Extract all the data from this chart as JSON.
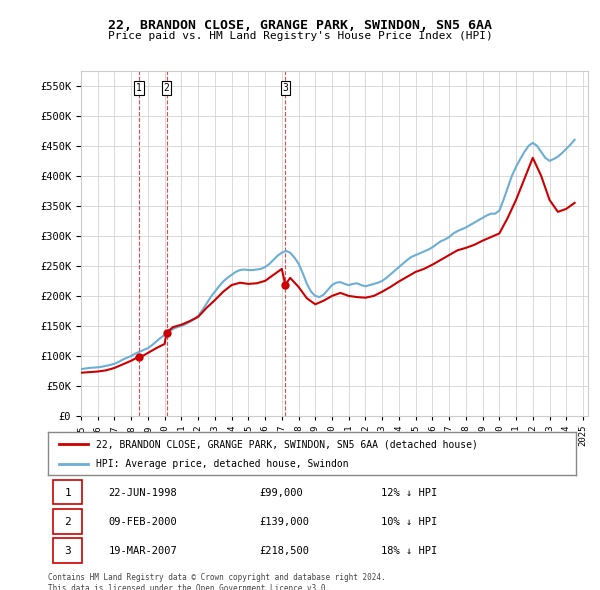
{
  "title": "22, BRANDON CLOSE, GRANGE PARK, SWINDON, SN5 6AA",
  "subtitle": "Price paid vs. HM Land Registry's House Price Index (HPI)",
  "hpi_color": "#6baed6",
  "price_color": "#cc0000",
  "dashed_vline_color": "#cc0000",
  "background_color": "#ffffff",
  "grid_color": "#cccccc",
  "ylim": [
    0,
    575000
  ],
  "yticks": [
    0,
    50000,
    100000,
    150000,
    200000,
    250000,
    300000,
    350000,
    400000,
    450000,
    500000,
    550000
  ],
  "purchases": [
    {
      "label": "1",
      "date": "22-JUN-1998",
      "price": 99000,
      "year": 1998.47,
      "pct": "12%",
      "dir": "↓"
    },
    {
      "label": "2",
      "date": "09-FEB-2000",
      "price": 139000,
      "year": 2000.11,
      "pct": "10%",
      "dir": "↓"
    },
    {
      "label": "3",
      "date": "19-MAR-2007",
      "price": 218500,
      "year": 2007.21,
      "pct": "18%",
      "dir": "↓"
    }
  ],
  "legend_label_price": "22, BRANDON CLOSE, GRANGE PARK, SWINDON, SN5 6AA (detached house)",
  "legend_label_hpi": "HPI: Average price, detached house, Swindon",
  "footer_line1": "Contains HM Land Registry data © Crown copyright and database right 2024.",
  "footer_line2": "This data is licensed under the Open Government Licence v3.0.",
  "hpi_data": {
    "years": [
      1995.0,
      1995.25,
      1995.5,
      1995.75,
      1996.0,
      1996.25,
      1996.5,
      1996.75,
      1997.0,
      1997.25,
      1997.5,
      1997.75,
      1998.0,
      1998.25,
      1998.5,
      1998.75,
      1999.0,
      1999.25,
      1999.5,
      1999.75,
      2000.0,
      2000.25,
      2000.5,
      2000.75,
      2001.0,
      2001.25,
      2001.5,
      2001.75,
      2002.0,
      2002.25,
      2002.5,
      2002.75,
      2003.0,
      2003.25,
      2003.5,
      2003.75,
      2004.0,
      2004.25,
      2004.5,
      2004.75,
      2005.0,
      2005.25,
      2005.5,
      2005.75,
      2006.0,
      2006.25,
      2006.5,
      2006.75,
      2007.0,
      2007.25,
      2007.5,
      2007.75,
      2008.0,
      2008.25,
      2008.5,
      2008.75,
      2009.0,
      2009.25,
      2009.5,
      2009.75,
      2010.0,
      2010.25,
      2010.5,
      2010.75,
      2011.0,
      2011.25,
      2011.5,
      2011.75,
      2012.0,
      2012.25,
      2012.5,
      2012.75,
      2013.0,
      2013.25,
      2013.5,
      2013.75,
      2014.0,
      2014.25,
      2014.5,
      2014.75,
      2015.0,
      2015.25,
      2015.5,
      2015.75,
      2016.0,
      2016.25,
      2016.5,
      2016.75,
      2017.0,
      2017.25,
      2017.5,
      2017.75,
      2018.0,
      2018.25,
      2018.5,
      2018.75,
      2019.0,
      2019.25,
      2019.5,
      2019.75,
      2020.0,
      2020.25,
      2020.5,
      2020.75,
      2021.0,
      2021.25,
      2021.5,
      2021.75,
      2022.0,
      2022.25,
      2022.5,
      2022.75,
      2023.0,
      2023.25,
      2023.5,
      2023.75,
      2024.0,
      2024.25,
      2024.5
    ],
    "values": [
      78000,
      79000,
      80000,
      80500,
      81000,
      82000,
      83500,
      85000,
      87000,
      90000,
      94000,
      97000,
      100000,
      104000,
      107000,
      110000,
      113000,
      118000,
      124000,
      130000,
      135000,
      140000,
      145000,
      148000,
      150000,
      153000,
      157000,
      161000,
      167000,
      176000,
      187000,
      198000,
      207000,
      216000,
      224000,
      230000,
      235000,
      240000,
      243000,
      244000,
      243000,
      243000,
      244000,
      245000,
      248000,
      253000,
      260000,
      267000,
      272000,
      275000,
      272000,
      264000,
      254000,
      238000,
      220000,
      207000,
      200000,
      198000,
      202000,
      210000,
      218000,
      222000,
      223000,
      220000,
      218000,
      220000,
      221000,
      218000,
      216000,
      218000,
      220000,
      222000,
      225000,
      230000,
      236000,
      242000,
      248000,
      254000,
      260000,
      265000,
      268000,
      271000,
      274000,
      277000,
      281000,
      286000,
      291000,
      294000,
      298000,
      304000,
      308000,
      311000,
      314000,
      318000,
      322000,
      326000,
      330000,
      334000,
      337000,
      337000,
      342000,
      360000,
      380000,
      400000,
      415000,
      428000,
      440000,
      450000,
      455000,
      450000,
      440000,
      430000,
      425000,
      428000,
      432000,
      438000,
      445000,
      452000,
      460000
    ]
  },
  "price_series": {
    "years": [
      1995.0,
      1995.5,
      1996.0,
      1996.5,
      1997.0,
      1997.5,
      1998.0,
      1998.47,
      1998.75,
      1999.0,
      1999.5,
      2000.0,
      2000.11,
      2000.5,
      2001.0,
      2001.5,
      2002.0,
      2002.5,
      2003.0,
      2003.5,
      2004.0,
      2004.5,
      2005.0,
      2005.5,
      2006.0,
      2006.5,
      2007.0,
      2007.21,
      2007.5,
      2008.0,
      2008.5,
      2009.0,
      2009.5,
      2010.0,
      2010.5,
      2011.0,
      2011.5,
      2012.0,
      2012.5,
      2013.0,
      2013.5,
      2014.0,
      2014.5,
      2015.0,
      2015.5,
      2016.0,
      2016.5,
      2017.0,
      2017.5,
      2018.0,
      2018.5,
      2019.0,
      2019.5,
      2020.0,
      2020.5,
      2021.0,
      2021.5,
      2022.0,
      2022.5,
      2023.0,
      2023.5,
      2024.0,
      2024.5
    ],
    "values": [
      72000,
      73000,
      74000,
      76000,
      80000,
      86000,
      92000,
      99000,
      101000,
      105000,
      113000,
      120000,
      139000,
      148000,
      152000,
      158000,
      165000,
      180000,
      193000,
      207000,
      218000,
      222000,
      220000,
      221000,
      225000,
      235000,
      245000,
      218500,
      230000,
      215000,
      196000,
      186000,
      192000,
      200000,
      205000,
      200000,
      198000,
      197000,
      200000,
      207000,
      215000,
      224000,
      232000,
      240000,
      245000,
      252000,
      260000,
      268000,
      276000,
      280000,
      285000,
      292000,
      298000,
      304000,
      330000,
      360000,
      395000,
      430000,
      400000,
      360000,
      340000,
      345000,
      355000
    ]
  }
}
